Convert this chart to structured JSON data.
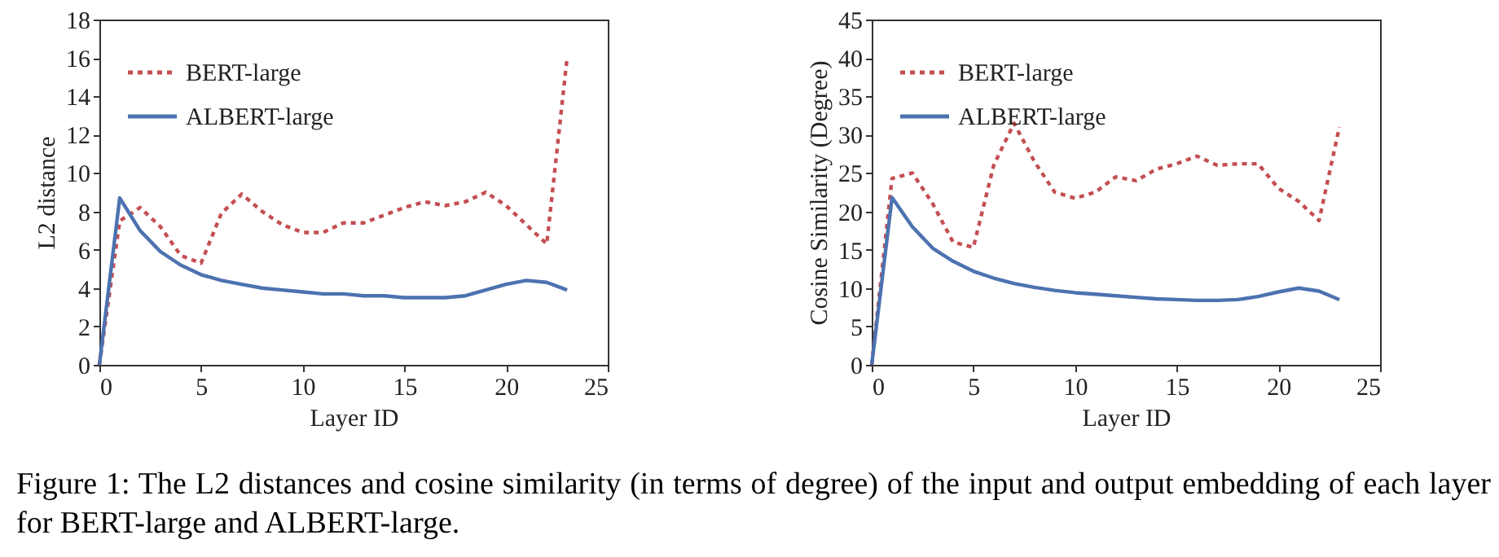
{
  "chart_data": [
    {
      "type": "line",
      "xlabel": "Layer ID",
      "ylabel": "L2 distance",
      "x": [
        0,
        1,
        2,
        3,
        4,
        5,
        6,
        7,
        8,
        9,
        10,
        11,
        12,
        13,
        14,
        15,
        16,
        17,
        18,
        19,
        20,
        21,
        22,
        23
      ],
      "xlim": [
        0,
        25
      ],
      "xticks": [
        0,
        5,
        10,
        15,
        20,
        25
      ],
      "ylim": [
        0,
        18
      ],
      "yticks": [
        0,
        2,
        4,
        6,
        8,
        10,
        12,
        14,
        16,
        18
      ],
      "grid": false,
      "legend": "top left",
      "marker": "none",
      "series": [
        {
          "name": "BERT-large",
          "color": "#c44e52",
          "line_style": "dotted",
          "values": [
            0,
            7.5,
            8.2,
            7.2,
            5.7,
            5.3,
            7.9,
            8.9,
            8.0,
            7.3,
            6.9,
            6.9,
            7.4,
            7.4,
            7.8,
            8.2,
            8.5,
            8.3,
            8.5,
            9.0,
            8.3,
            7.3,
            6.3,
            16.0
          ]
        },
        {
          "name": "ALBERT-large",
          "color": "#4c72b0",
          "line_style": "solid",
          "values": [
            0,
            8.7,
            7.0,
            5.9,
            5.2,
            4.7,
            4.4,
            4.2,
            4.0,
            3.9,
            3.8,
            3.7,
            3.7,
            3.6,
            3.6,
            3.5,
            3.5,
            3.5,
            3.6,
            3.9,
            4.2,
            4.4,
            4.3,
            3.9
          ]
        }
      ],
      "annotations": [
        "Figure 1: The L2 distances and cosine similarity (in terms of degree) of the input and output embedding of each layer for BERT-large and ALBERT-large."
      ]
    },
    {
      "type": "line",
      "xlabel": "Layer ID",
      "ylabel": "Cosine Similarity (Degree)",
      "x": [
        0,
        1,
        2,
        3,
        4,
        5,
        6,
        7,
        8,
        9,
        10,
        11,
        12,
        13,
        14,
        15,
        16,
        17,
        18,
        19,
        20,
        21,
        22,
        23
      ],
      "xlim": [
        0,
        25
      ],
      "xticks": [
        0,
        5,
        10,
        15,
        20,
        25
      ],
      "ylim": [
        0,
        45
      ],
      "yticks": [
        0,
        5,
        10,
        15,
        20,
        25,
        30,
        35,
        40,
        45
      ],
      "grid": false,
      "legend": "top left",
      "marker": "none",
      "series": [
        {
          "name": "BERT-large",
          "color": "#c44e52",
          "line_style": "dotted",
          "values": [
            0,
            24.3,
            25,
            21,
            16,
            15.3,
            26,
            31.5,
            26.5,
            22.5,
            21.7,
            22.5,
            24.5,
            24,
            25.5,
            26.2,
            27.2,
            26,
            26.2,
            26.2,
            23,
            21.3,
            18.8,
            31
          ]
        },
        {
          "name": "ALBERT-large",
          "color": "#4c72b0",
          "line_style": "solid",
          "values": [
            0,
            21.8,
            18,
            15.2,
            13.5,
            12.2,
            11.3,
            10.6,
            10.1,
            9.7,
            9.4,
            9.2,
            9.0,
            8.8,
            8.6,
            8.5,
            8.4,
            8.4,
            8.5,
            8.9,
            9.5,
            10.0,
            9.6,
            8.5
          ]
        }
      ]
    }
  ]
}
